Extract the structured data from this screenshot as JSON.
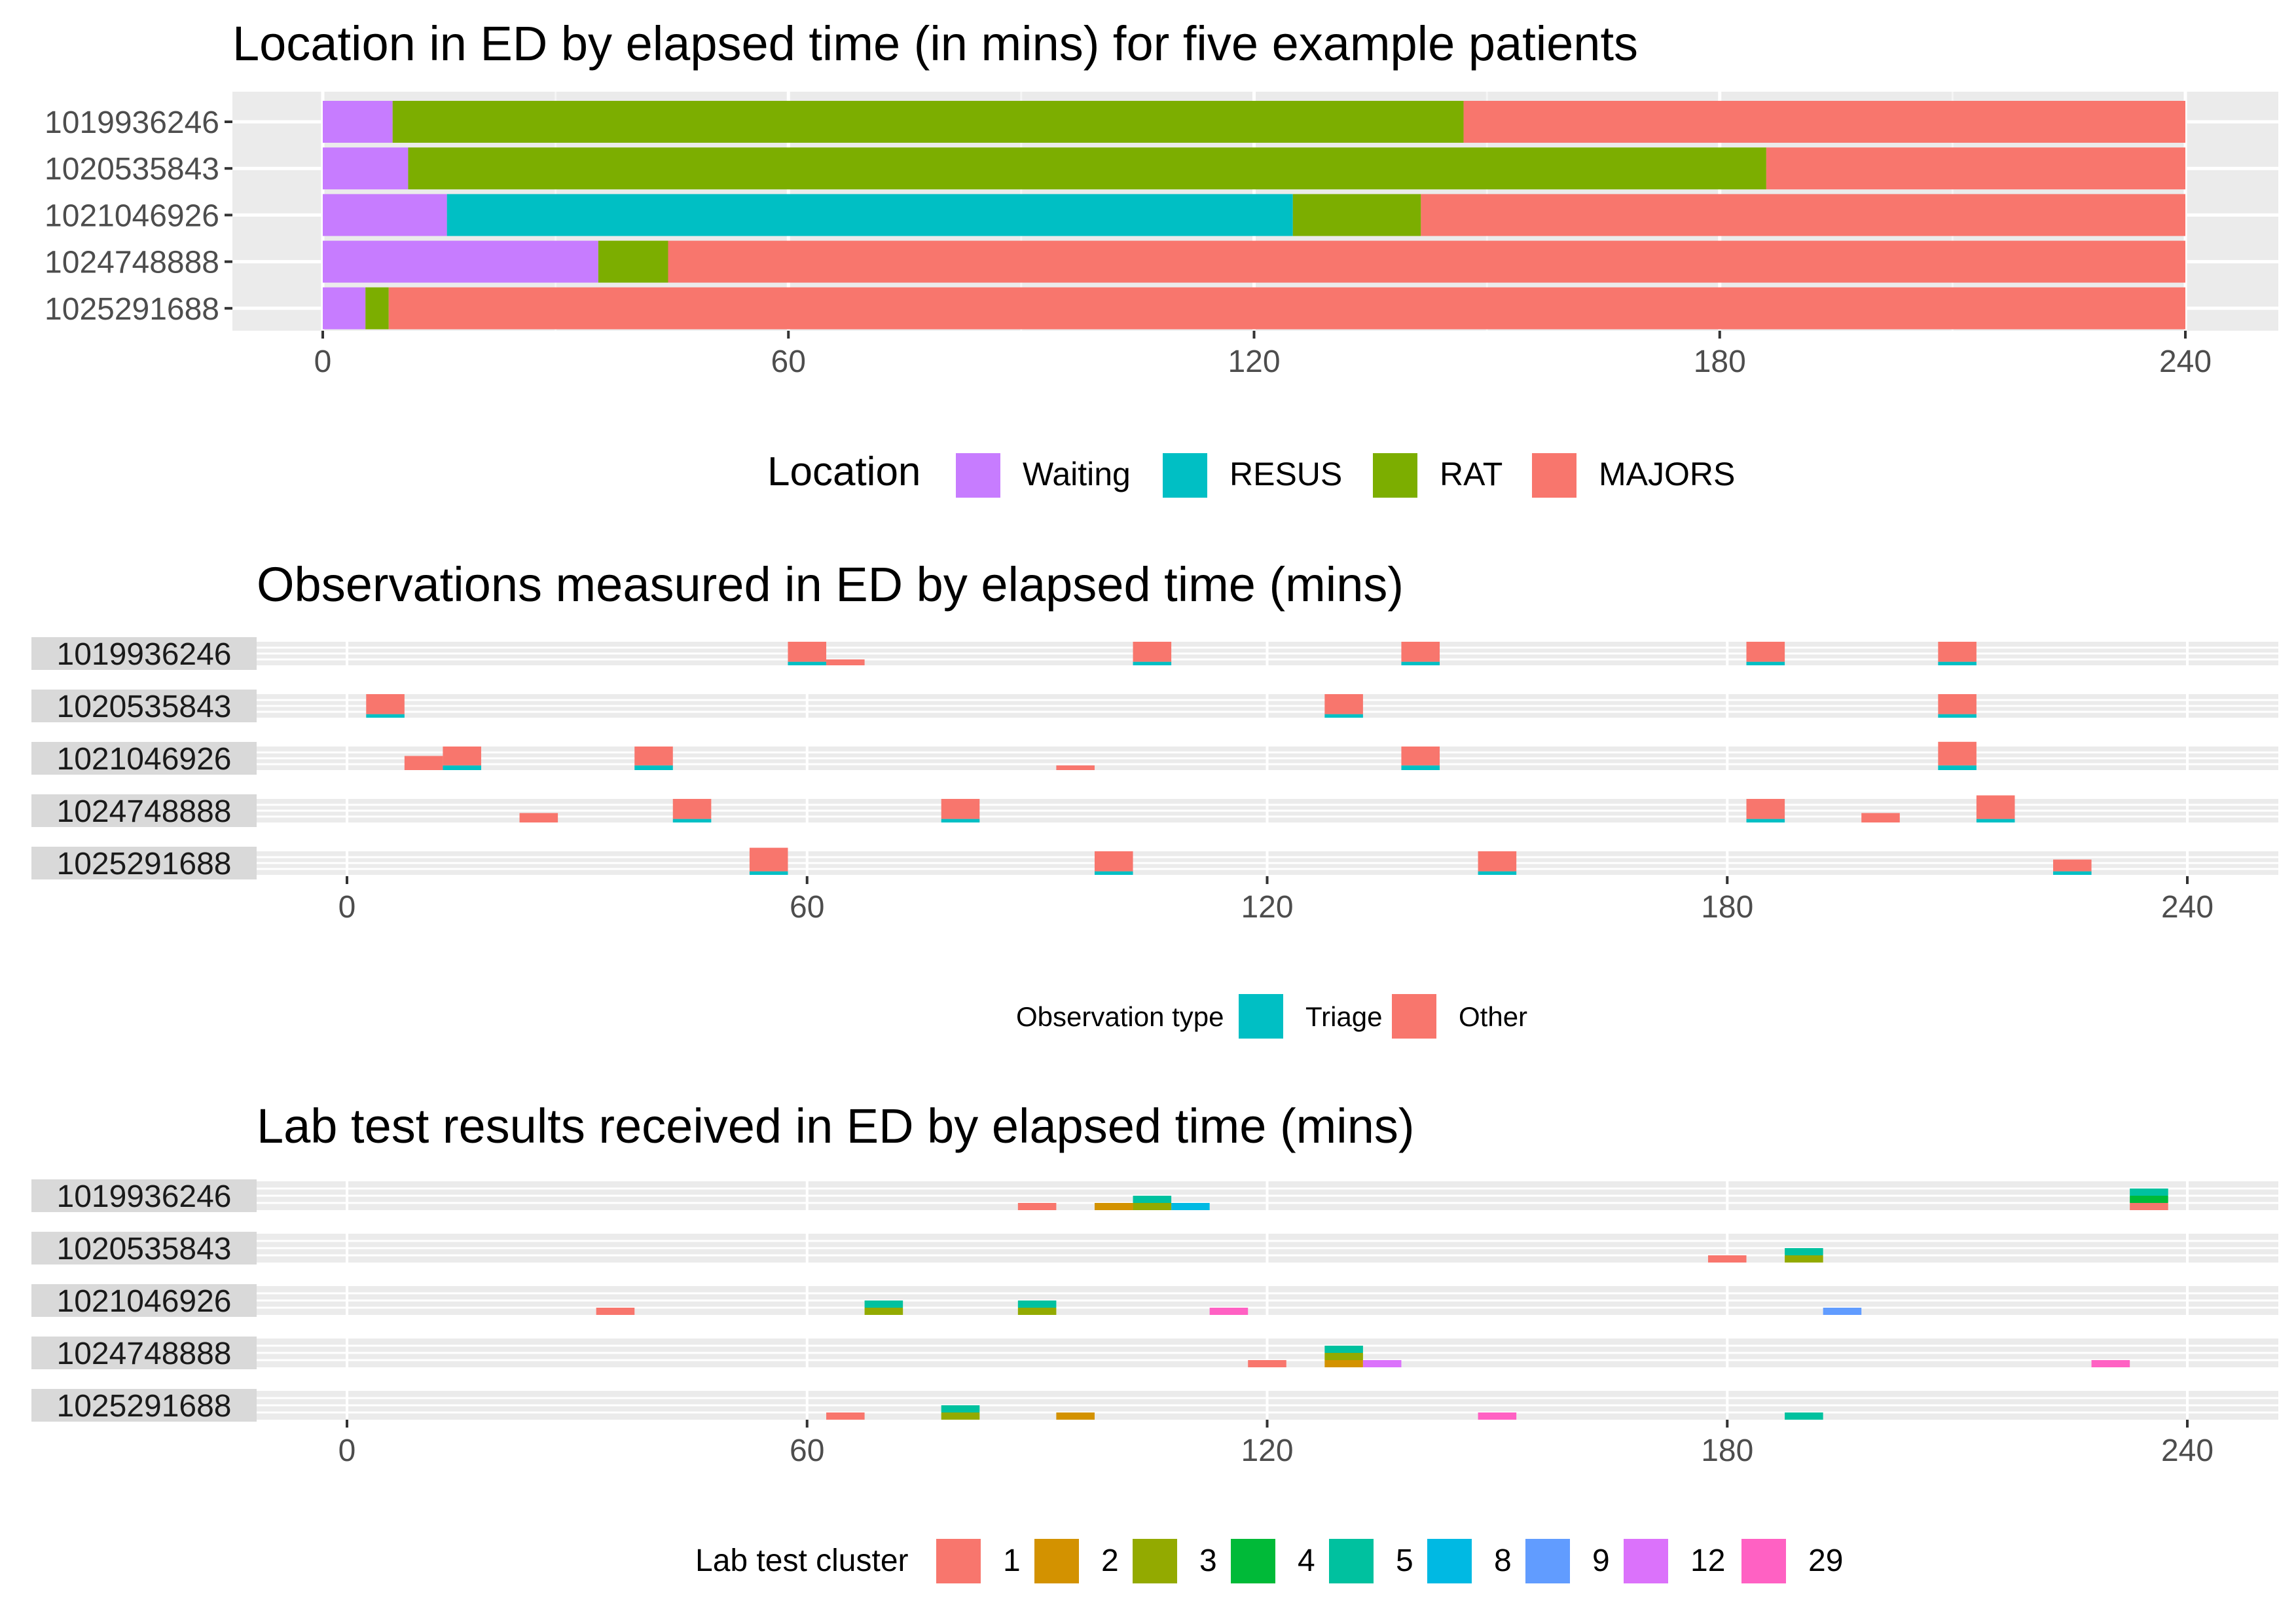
{
  "patients": [
    "1019936246",
    "1020535843",
    "1021046926",
    "1024748888",
    "1025291688"
  ],
  "axis_ticks": [
    0,
    60,
    120,
    180,
    240
  ],
  "colors": {
    "panel_bg": "#EBEBEB",
    "strip_bg": "#D9D9D9",
    "grid_major": "#FFFFFF",
    "tick": "#333333",
    "tick_label": "#4D4D4D"
  },
  "chart_data": [
    {
      "type": "bar",
      "orientation": "horizontal-stacked-timeline",
      "title": "Location in ED by elapsed time (in mins) for five example patients",
      "xlabel": "",
      "ylabel": "",
      "xlim": [
        0,
        240
      ],
      "grid": true,
      "legend": {
        "title": "Location",
        "position": "bottom",
        "items": [
          {
            "label": "Waiting",
            "color": "#C77CFF"
          },
          {
            "label": "RESUS",
            "color": "#00BFC4"
          },
          {
            "label": "RAT",
            "color": "#7CAE00"
          },
          {
            "label": "MAJORS",
            "color": "#F8766D"
          }
        ]
      },
      "rows": [
        {
          "patient": "1019936246",
          "segments": [
            {
              "location": "Waiting",
              "start": 0,
              "end": 9
            },
            {
              "location": "RAT",
              "start": 9,
              "end": 147
            },
            {
              "location": "MAJORS",
              "start": 147,
              "end": 240
            }
          ]
        },
        {
          "patient": "1020535843",
          "segments": [
            {
              "location": "Waiting",
              "start": 0,
              "end": 11
            },
            {
              "location": "RAT",
              "start": 11,
              "end": 186
            },
            {
              "location": "MAJORS",
              "start": 186,
              "end": 240
            }
          ]
        },
        {
          "patient": "1021046926",
          "segments": [
            {
              "location": "Waiting",
              "start": 0,
              "end": 16
            },
            {
              "location": "RESUS",
              "start": 16,
              "end": 125
            },
            {
              "location": "RAT",
              "start": 125,
              "end": 141.5
            },
            {
              "location": "MAJORS",
              "start": 141.5,
              "end": 240
            }
          ]
        },
        {
          "patient": "1024748888",
          "segments": [
            {
              "location": "Waiting",
              "start": 0,
              "end": 35.5
            },
            {
              "location": "RAT",
              "start": 35.5,
              "end": 44.5
            },
            {
              "location": "MAJORS",
              "start": 44.5,
              "end": 240
            }
          ]
        },
        {
          "patient": "1025291688",
          "segments": [
            {
              "location": "Waiting",
              "start": 0,
              "end": 5.5
            },
            {
              "location": "RAT",
              "start": 5.5,
              "end": 8.5
            },
            {
              "location": "MAJORS",
              "start": 8.5,
              "end": 240
            }
          ]
        }
      ]
    },
    {
      "type": "bar",
      "orientation": "faceted-stacked-counts",
      "title": "Observations measured in ED by elapsed time (mins)",
      "xlabel": "",
      "ylabel": "",
      "xlim": [
        0,
        240
      ],
      "grid": true,
      "legend": {
        "title": "Observation type",
        "position": "bottom",
        "items": [
          {
            "label": "Triage",
            "color": "#00BFC4"
          },
          {
            "label": "Other",
            "color": "#F8766D"
          }
        ]
      },
      "max_stack": 1,
      "facets": [
        {
          "patient": "1019936246",
          "bins": [
            {
              "x": 60,
              "stack": {
                "Triage": 0.15,
                "Other": 0.85
              }
            },
            {
              "x": 65,
              "stack": {
                "Other": 0.25
              }
            },
            {
              "x": 105,
              "stack": {
                "Triage": 0.15,
                "Other": 0.85
              }
            },
            {
              "x": 140,
              "stack": {
                "Triage": 0.15,
                "Other": 0.85
              }
            },
            {
              "x": 185,
              "stack": {
                "Triage": 0.15,
                "Other": 0.85
              }
            },
            {
              "x": 210,
              "stack": {
                "Triage": 0.15,
                "Other": 0.85
              }
            }
          ]
        },
        {
          "patient": "1020535843",
          "bins": [
            {
              "x": 5,
              "stack": {
                "Triage": 0.15,
                "Other": 0.85
              }
            },
            {
              "x": 130,
              "stack": {
                "Triage": 0.15,
                "Other": 0.85
              }
            },
            {
              "x": 210,
              "stack": {
                "Triage": 0.15,
                "Other": 0.85
              }
            }
          ]
        },
        {
          "patient": "1021046926",
          "bins": [
            {
              "x": 10,
              "stack": {
                "Other": 0.6
              }
            },
            {
              "x": 15,
              "stack": {
                "Triage": 0.2,
                "Other": 0.8
              }
            },
            {
              "x": 40,
              "stack": {
                "Triage": 0.2,
                "Other": 0.8
              }
            },
            {
              "x": 95,
              "stack": {
                "Other": 0.2
              }
            },
            {
              "x": 140,
              "stack": {
                "Triage": 0.2,
                "Other": 0.8
              }
            },
            {
              "x": 210,
              "stack": {
                "Triage": 0.2,
                "Other": 1.0
              }
            }
          ]
        },
        {
          "patient": "1024748888",
          "bins": [
            {
              "x": 25,
              "stack": {
                "Other": 0.4
              }
            },
            {
              "x": 45,
              "stack": {
                "Triage": 0.15,
                "Other": 0.85
              }
            },
            {
              "x": 80,
              "stack": {
                "Triage": 0.15,
                "Other": 0.85
              }
            },
            {
              "x": 185,
              "stack": {
                "Triage": 0.15,
                "Other": 0.85
              }
            },
            {
              "x": 200,
              "stack": {
                "Other": 0.4
              }
            },
            {
              "x": 215,
              "stack": {
                "Triage": 0.15,
                "Other": 1.0
              }
            }
          ]
        },
        {
          "patient": "1025291688",
          "bins": [
            {
              "x": 55,
              "stack": {
                "Triage": 0.15,
                "Other": 1.0
              }
            },
            {
              "x": 100,
              "stack": {
                "Triage": 0.15,
                "Other": 0.85
              }
            },
            {
              "x": 150,
              "stack": {
                "Triage": 0.15,
                "Other": 0.85
              }
            },
            {
              "x": 225,
              "stack": {
                "Triage": 0.15,
                "Other": 0.5
              }
            }
          ]
        }
      ]
    },
    {
      "type": "bar",
      "orientation": "faceted-stacked-counts",
      "title": "Lab test results received in ED by elapsed time (mins)",
      "xlabel": "",
      "ylabel": "",
      "xlim": [
        0,
        240
      ],
      "grid": true,
      "legend": {
        "title": "Lab test cluster",
        "position": "bottom",
        "items": [
          {
            "label": "1",
            "color": "#F8766D"
          },
          {
            "label": "2",
            "color": "#D39200"
          },
          {
            "label": "3",
            "color": "#93AA00"
          },
          {
            "label": "4",
            "color": "#00BA38"
          },
          {
            "label": "5",
            "color": "#00C19F"
          },
          {
            "label": "8",
            "color": "#00B9E3"
          },
          {
            "label": "9",
            "color": "#619CFF"
          },
          {
            "label": "12",
            "color": "#DB72FB"
          },
          {
            "label": "29",
            "color": "#FF61C3"
          }
        ]
      },
      "max_stack": 4,
      "facets": [
        {
          "patient": "1019936246",
          "bins": [
            {
              "x": 90,
              "stack": {
                "1": 1
              }
            },
            {
              "x": 100,
              "stack": {
                "2": 1
              }
            },
            {
              "x": 105,
              "stack": {
                "5": 1,
                "3": 1
              }
            },
            {
              "x": 110,
              "stack": {
                "8": 1
              }
            },
            {
              "x": 235,
              "stack": {
                "5": 1,
                "4": 1,
                "1": 1
              }
            }
          ]
        },
        {
          "patient": "1020535843",
          "bins": [
            {
              "x": 180,
              "stack": {
                "1": 1
              }
            },
            {
              "x": 190,
              "stack": {
                "5": 1,
                "3": 1
              }
            }
          ]
        },
        {
          "patient": "1021046926",
          "bins": [
            {
              "x": 35,
              "stack": {
                "1": 1
              }
            },
            {
              "x": 70,
              "stack": {
                "5": 1,
                "3": 1
              }
            },
            {
              "x": 90,
              "stack": {
                "5": 1,
                "3": 1
              }
            },
            {
              "x": 115,
              "stack": {
                "29": 1
              }
            },
            {
              "x": 195,
              "stack": {
                "9": 1
              }
            }
          ]
        },
        {
          "patient": "1024748888",
          "bins": [
            {
              "x": 120,
              "stack": {
                "1": 1
              }
            },
            {
              "x": 130,
              "stack": {
                "5": 1,
                "3": 1,
                "2": 1
              }
            },
            {
              "x": 135,
              "stack": {
                "12": 1
              }
            },
            {
              "x": 230,
              "stack": {
                "29": 1
              }
            }
          ]
        },
        {
          "patient": "1025291688",
          "bins": [
            {
              "x": 65,
              "stack": {
                "1": 1
              }
            },
            {
              "x": 80,
              "stack": {
                "5": 1,
                "3": 1
              }
            },
            {
              "x": 95,
              "stack": {
                "2": 1
              }
            },
            {
              "x": 150,
              "stack": {
                "29": 1
              }
            },
            {
              "x": 190,
              "stack": {
                "5": 1
              }
            }
          ]
        }
      ]
    }
  ]
}
